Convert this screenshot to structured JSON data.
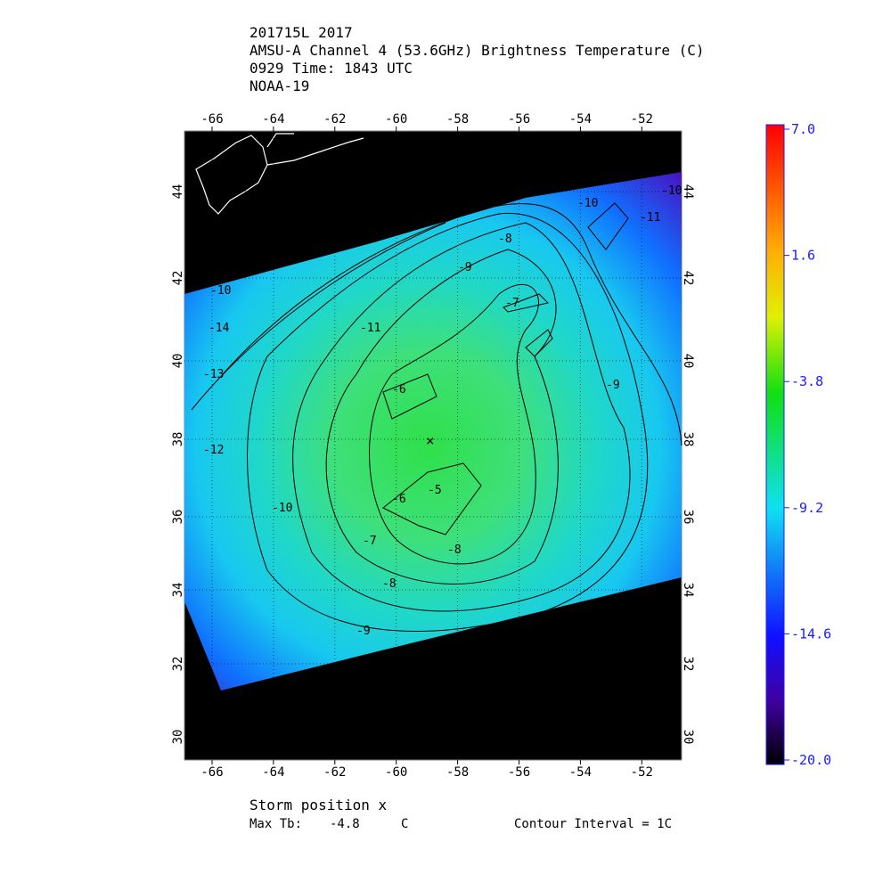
{
  "header": {
    "lines": [
      "201715L 2017",
      "AMSU-A Channel 4 (53.6GHz) Brightness Temperature (C)",
      "0929 Time: 1843 UTC",
      "NOAA-19"
    ]
  },
  "map": {
    "lon_ticks": [
      -66,
      -64,
      -62,
      -60,
      -58,
      -56,
      -54,
      -52
    ],
    "lat_ticks": [
      44,
      42,
      40,
      38,
      36,
      34,
      32,
      30
    ],
    "contour_labels": [
      -10,
      -11,
      -10,
      -8,
      -9,
      -7,
      -10,
      -14,
      -11,
      -13,
      -9,
      -6,
      -12,
      -5,
      -6,
      -10,
      -7,
      -8,
      -8,
      -9
    ]
  },
  "colorbar": {
    "labels": [
      "7.0",
      "1.6",
      "-3.8",
      "-9.2",
      "-14.6",
      "-20.0"
    ]
  },
  "footer": {
    "storm": "Storm position x",
    "max_label": "Max Tb:",
    "max_value": "-4.8",
    "max_unit": "C",
    "contour": "Contour Interval = 1C"
  }
}
